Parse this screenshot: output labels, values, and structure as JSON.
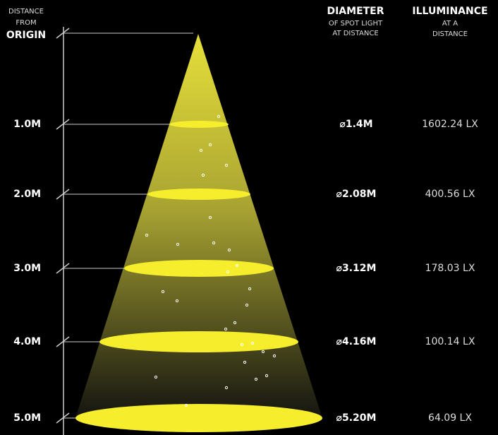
{
  "header": {
    "distance": [
      "DISTANCE",
      "FROM"
    ],
    "origin": "ORIGIN",
    "diameter": {
      "title": "DIAMETER",
      "sub": [
        "OF SPOT LIGHT",
        "AT DISTANCE"
      ]
    },
    "illuminance": {
      "title": "ILLUMINANCE",
      "sub": [
        "AT A",
        "DISTANCE"
      ]
    }
  },
  "rows": [
    {
      "distance": "1.0M",
      "diameter": "⌀1.4M",
      "illuminance": "1602.24 LX"
    },
    {
      "distance": "2.0M",
      "diameter": "⌀2.08M",
      "illuminance": "400.56 LX"
    },
    {
      "distance": "3.0M",
      "diameter": "⌀3.12M",
      "illuminance": "178.03 LX"
    },
    {
      "distance": "4.0M",
      "diameter": "⌀4.16M",
      "illuminance": "100.14 LX"
    },
    {
      "distance": "5.0M",
      "diameter": "⌀5.20M",
      "illuminance": "64.09 LX"
    }
  ]
}
